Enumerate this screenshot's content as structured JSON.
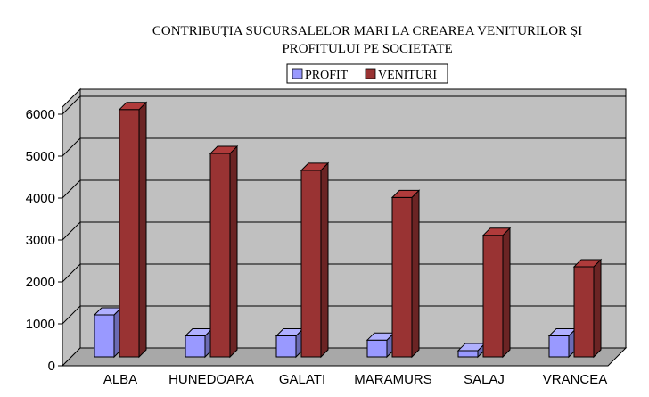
{
  "chart_data": {
    "type": "bar",
    "title_line1": "CONTRIBUŢIA  SUCURSALELOR  MARI  LA CREAREA  VENITURILOR ŞI",
    "title_line2": "PROFITULUI PE SOCIETATE",
    "categories": [
      "ALBA",
      "HUNEDOARA",
      "GALATI",
      "MARAMURS",
      "SALAJ",
      "VRANCEA"
    ],
    "series": [
      {
        "name": "PROFIT",
        "values": [
          1000,
          500,
          500,
          400,
          150,
          500
        ],
        "color": "#9999ff"
      },
      {
        "name": "VENITURI",
        "values": [
          5900,
          4850,
          4450,
          3800,
          2900,
          2150
        ],
        "color": "#993333"
      }
    ],
    "yticks": [
      "0",
      "1000",
      "2000",
      "3000",
      "4000",
      "5000",
      "6000"
    ],
    "ylim": [
      0,
      6000
    ],
    "grid": true,
    "legend_position": "top-center",
    "walls_color": "#c0c0c0"
  }
}
